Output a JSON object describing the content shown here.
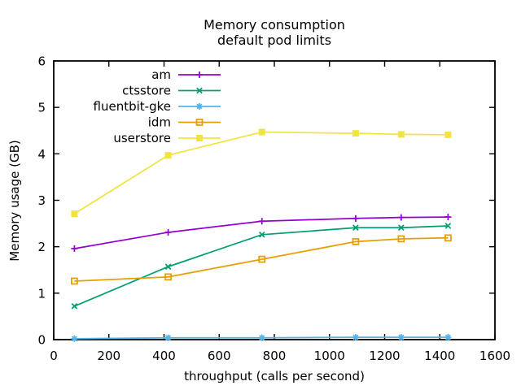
{
  "chart_data": {
    "type": "line",
    "title": "Memory consumption",
    "subtitle": "default pod limits",
    "xlabel": "throughput (calls per second)",
    "ylabel": "Memory usage (GB)",
    "xlim": [
      0,
      1600
    ],
    "ylim": [
      0,
      6
    ],
    "x_ticks": [
      0,
      200,
      400,
      600,
      800,
      1000,
      1200,
      1400,
      1600
    ],
    "y_ticks": [
      0,
      1,
      2,
      3,
      4,
      5,
      6
    ],
    "grid": false,
    "background": "#ffffff",
    "axis_color": "#000000",
    "legend": {
      "position": "inside-top-left",
      "order": [
        "am",
        "ctsstore",
        "fluentbit-gke",
        "idm",
        "userstore"
      ]
    },
    "x": [
      75,
      415,
      755,
      1095,
      1260,
      1430
    ],
    "series": [
      {
        "name": "am",
        "color": "#9400d3",
        "marker": "plus",
        "values": [
          1.96,
          2.31,
          2.55,
          2.61,
          2.63,
          2.64
        ]
      },
      {
        "name": "ctsstore",
        "color": "#009e73",
        "marker": "cross",
        "values": [
          0.72,
          1.57,
          2.26,
          2.41,
          2.41,
          2.45
        ]
      },
      {
        "name": "fluentbit-gke",
        "color": "#56b4e9",
        "marker": "asterisk",
        "values": [
          0.02,
          0.04,
          0.04,
          0.05,
          0.05,
          0.05
        ]
      },
      {
        "name": "idm",
        "color": "#e69f00",
        "marker": "open-square",
        "values": [
          1.26,
          1.35,
          1.73,
          2.11,
          2.17,
          2.19
        ]
      },
      {
        "name": "userstore",
        "color": "#f0e442",
        "marker": "filled-square",
        "values": [
          2.71,
          3.97,
          4.47,
          4.44,
          4.42,
          4.41
        ]
      }
    ]
  }
}
